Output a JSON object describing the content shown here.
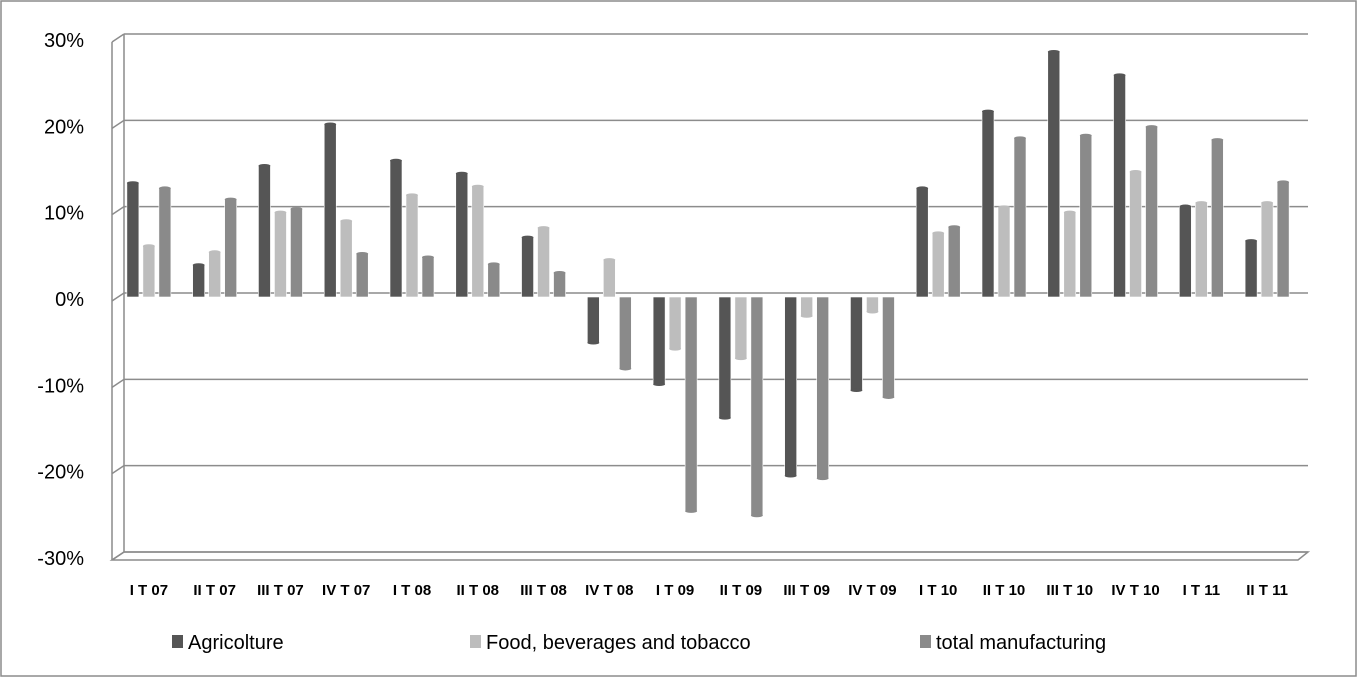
{
  "chart_data": {
    "type": "bar",
    "title": "",
    "xlabel": "",
    "ylabel": "",
    "ylim": [
      -0.3,
      0.3
    ],
    "yticks": [
      {
        "value": 0.3,
        "label": "30%"
      },
      {
        "value": 0.2,
        "label": "20%"
      },
      {
        "value": 0.1,
        "label": "10%"
      },
      {
        "value": 0.0,
        "label": "0%"
      },
      {
        "value": -0.1,
        "label": "-10%"
      },
      {
        "value": -0.2,
        "label": "-20%"
      },
      {
        "value": -0.3,
        "label": "-30%"
      }
    ],
    "grid": true,
    "legend_position": "bottom",
    "categories": [
      "I T 07",
      "II T 07",
      "III T 07",
      "IV T 07",
      "I T 08",
      "II T 08",
      "III T 08",
      "IV T 08",
      "I T 09",
      "II T 09",
      "III T 09",
      "IV T 09",
      "I T 10",
      "II T 10",
      "III T 10",
      "IV T 10",
      "I T 11",
      "II T 11"
    ],
    "series": [
      {
        "name": "Agricolture",
        "color": "#555555",
        "values": [
          0.132,
          0.037,
          0.152,
          0.2,
          0.158,
          0.143,
          0.069,
          -0.053,
          -0.101,
          -0.14,
          -0.207,
          -0.108,
          0.126,
          0.215,
          0.284,
          0.257,
          0.105,
          0.065
        ]
      },
      {
        "name": "Food, beverages and tobacco",
        "color": "#bdbdbd",
        "values": [
          0.059,
          0.052,
          0.098,
          0.088,
          0.118,
          0.128,
          0.08,
          0.043,
          -0.06,
          -0.071,
          -0.022,
          -0.017,
          0.074,
          0.104,
          0.098,
          0.145,
          0.109,
          0.109
        ]
      },
      {
        "name": "total manufacturing",
        "color": "#8a8a8a",
        "values": [
          0.126,
          0.113,
          0.102,
          0.05,
          0.046,
          0.038,
          0.028,
          -0.083,
          -0.248,
          -0.253,
          -0.21,
          -0.116,
          0.081,
          0.184,
          0.187,
          0.197,
          0.182,
          0.133
        ]
      }
    ]
  }
}
